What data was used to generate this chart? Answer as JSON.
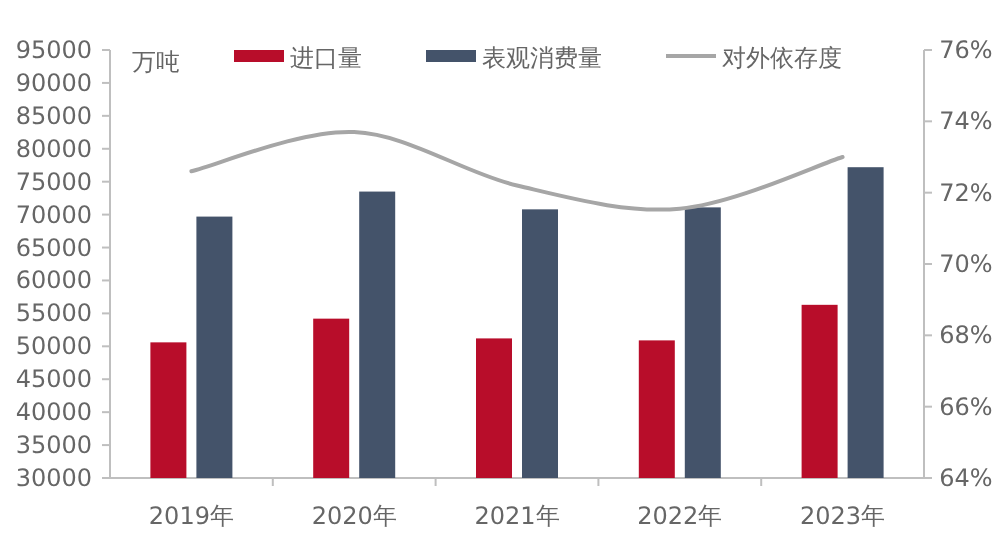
{
  "chart_data": {
    "type": "bar",
    "ylabel": "万吨",
    "categories": [
      "2019年",
      "2020年",
      "2021年",
      "2022年",
      "2023年"
    ],
    "series": [
      {
        "name": "进口量",
        "color": "#b80d2a",
        "values": [
          50600,
          54200,
          51200,
          50900,
          56300
        ]
      },
      {
        "name": "表观消费量",
        "color": "#44536a",
        "values": [
          69700,
          73500,
          70800,
          71100,
          77200
        ]
      },
      {
        "name": "对外依存度",
        "type": "line",
        "axis": "y2",
        "color": "#a6a6a6",
        "values": [
          72.6,
          73.7,
          72.2,
          71.55,
          73.0
        ]
      }
    ],
    "ylim": [
      30000,
      95000
    ],
    "yticks": [
      30000,
      35000,
      40000,
      45000,
      50000,
      55000,
      60000,
      65000,
      70000,
      75000,
      80000,
      85000,
      90000,
      95000
    ],
    "y2lim": [
      64,
      76
    ],
    "y2ticks": [
      {
        "value": 64,
        "label": "64%"
      },
      {
        "value": 66,
        "label": "66%"
      },
      {
        "value": 68,
        "label": "68%"
      },
      {
        "value": 70,
        "label": "70%"
      },
      {
        "value": 72,
        "label": "72%"
      },
      {
        "value": 74,
        "label": "74%"
      },
      {
        "value": 76,
        "label": "76%"
      }
    ],
    "legend": "top",
    "grid": false,
    "marker": "none",
    "line_style": "solid"
  }
}
